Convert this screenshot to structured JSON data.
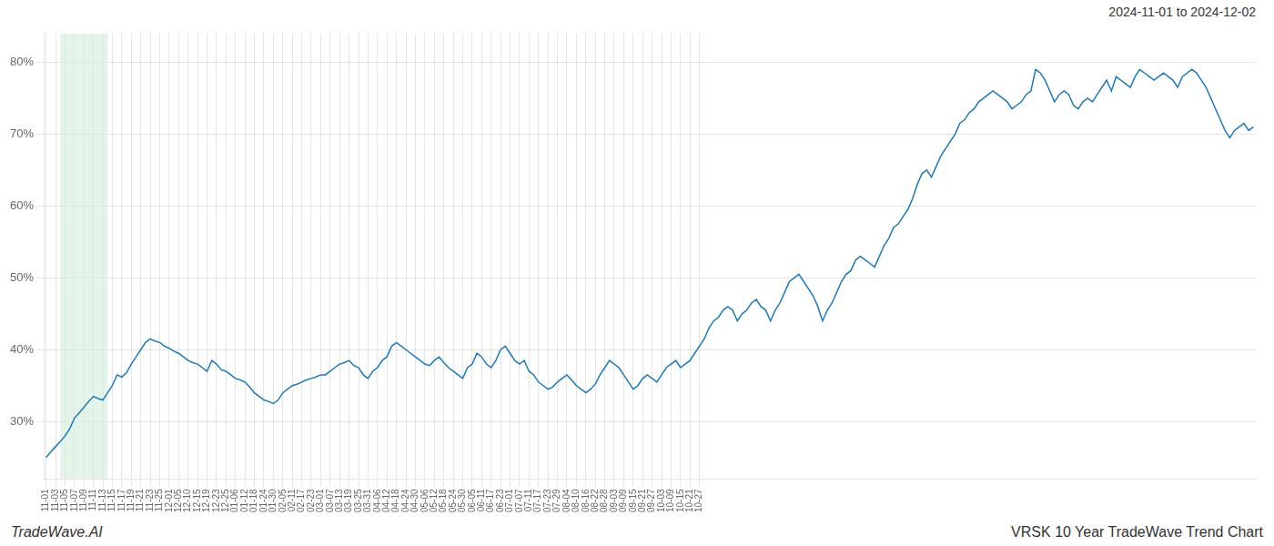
{
  "chart_data": {
    "type": "line",
    "title": "VRSK 10 Year TradeWave Trend Chart",
    "subtitle": "2024-11-01 to 2024-12-02",
    "annotations": [
      "TradeWave.AI"
    ],
    "color": "#1a7abf",
    "grid": true,
    "shaded_region": {
      "start": 3,
      "end": 13,
      "color": "#d4edda"
    },
    "ylim": [
      22,
      84
    ],
    "yticks": [
      {
        "value": 30,
        "label": "30%"
      },
      {
        "value": 40,
        "label": "40%"
      },
      {
        "value": 50,
        "label": "50%"
      },
      {
        "value": 60,
        "label": "60%"
      },
      {
        "value": 70,
        "label": "70%"
      },
      {
        "value": 80,
        "label": "80%"
      }
    ],
    "categories": [
      "11-01",
      null,
      "11-03",
      null,
      "11-05",
      null,
      "11-07",
      null,
      "11-09",
      null,
      "11-11",
      null,
      "11-13",
      null,
      "11-15",
      null,
      "11-17",
      null,
      "11-19",
      null,
      "11-21",
      null,
      "11-23",
      null,
      "11-25",
      null,
      "12-01",
      null,
      "12-05",
      null,
      "12-10",
      null,
      "12-15",
      null,
      "12-19",
      null,
      "12-23",
      null,
      "12-25",
      null,
      "01-06",
      null,
      "01-12",
      null,
      "01-18",
      null,
      "01-24",
      null,
      "01-30",
      null,
      "02-05",
      null,
      "02-11",
      null,
      "02-17",
      null,
      "02-23",
      null,
      "03-01",
      null,
      "03-07",
      null,
      "03-13",
      null,
      "03-19",
      null,
      "03-25",
      null,
      "03-31",
      null,
      "04-06",
      null,
      "04-12",
      null,
      "04-18",
      null,
      "04-24",
      null,
      "04-30",
      null,
      "05-06",
      null,
      "05-12",
      null,
      "05-18",
      null,
      "05-24",
      null,
      "05-30",
      null,
      "06-05",
      null,
      "06-11",
      null,
      "06-17",
      null,
      "06-23",
      null,
      "07-01",
      null,
      "07-07",
      null,
      "07-11",
      null,
      "07-17",
      null,
      "07-23",
      null,
      "07-29",
      null,
      "08-04",
      null,
      "08-10",
      null,
      "08-16",
      null,
      "08-22",
      null,
      "08-28",
      null,
      "09-03",
      null,
      "09-09",
      null,
      "09-15",
      null,
      "09-21",
      null,
      "09-27",
      null,
      "10-03",
      null,
      "10-09",
      null,
      "10-15",
      null,
      "10-21",
      null,
      "10-27",
      null,
      null,
      null,
      null,
      null,
      null,
      null,
      null,
      null,
      null,
      null,
      null,
      null,
      null,
      null,
      null,
      null,
      null,
      null,
      null,
      null,
      null,
      null,
      null,
      null,
      null,
      null,
      null,
      null,
      null,
      null,
      null,
      null,
      null,
      null,
      null,
      null,
      null,
      null,
      null,
      null,
      null,
      null,
      null,
      null,
      null,
      null,
      null,
      null,
      null,
      null,
      null,
      null,
      null,
      null,
      null,
      null,
      null,
      null,
      null,
      null,
      null,
      null,
      null,
      null,
      null,
      null,
      null,
      null,
      null,
      null,
      null,
      null,
      null,
      null,
      null,
      null,
      null,
      null,
      null,
      null,
      null,
      null,
      null,
      null,
      null,
      null,
      null,
      null,
      null,
      null,
      null,
      null,
      null,
      null,
      null,
      null,
      null,
      null,
      null,
      null,
      null,
      null,
      null,
      null,
      null,
      null,
      null,
      null,
      null,
      null,
      null,
      null,
      null,
      null,
      null,
      null
    ],
    "values": [
      25.0,
      25.8,
      26.5,
      27.2,
      28.0,
      29.0,
      30.5,
      31.2,
      32.0,
      32.8,
      33.5,
      33.2,
      33.0,
      34.0,
      35.0,
      36.5,
      36.2,
      36.8,
      38.0,
      39.0,
      40.0,
      41.0,
      41.5,
      41.2,
      41.0,
      40.5,
      40.2,
      39.8,
      39.5,
      39.0,
      38.5,
      38.2,
      38.0,
      37.5,
      37.0,
      38.5,
      38.0,
      37.2,
      37.0,
      36.5,
      36.0,
      35.8,
      35.5,
      34.8,
      34.0,
      33.5,
      33.0,
      32.8,
      32.5,
      33.0,
      34.0,
      34.5,
      35.0,
      35.2,
      35.5,
      35.8,
      36.0,
      36.2,
      36.5,
      36.5,
      37.0,
      37.5,
      38.0,
      38.2,
      38.5,
      37.8,
      37.5,
      36.5,
      36.0,
      37.0,
      37.5,
      38.5,
      39.0,
      40.5,
      41.0,
      40.5,
      40.0,
      39.5,
      39.0,
      38.5,
      38.0,
      37.8,
      38.5,
      39.0,
      38.2,
      37.5,
      37.0,
      36.5,
      36.0,
      37.5,
      38.0,
      39.5,
      39.0,
      38.0,
      37.5,
      38.5,
      40.0,
      40.5,
      39.5,
      38.5,
      38.0,
      38.5,
      37.0,
      36.5,
      35.5,
      35.0,
      34.5,
      34.8,
      35.5,
      36.0,
      36.5,
      35.8,
      35.0,
      34.5,
      34.0,
      34.5,
      35.2,
      36.5,
      37.5,
      38.5,
      38.0,
      37.5,
      36.5,
      35.5,
      34.5,
      35.0,
      36.0,
      36.5,
      36.0,
      35.5,
      36.5,
      37.5,
      38.0,
      38.5,
      37.5,
      38.0,
      38.5,
      39.5,
      40.5,
      41.5,
      43.0,
      44.0,
      44.5,
      45.5,
      46.0,
      45.5,
      44.0,
      45.0,
      45.5,
      46.5,
      47.0,
      46.0,
      45.5,
      44.0,
      45.5,
      46.5,
      48.0,
      49.5,
      50.0,
      50.5,
      49.5,
      48.5,
      47.5,
      46.0,
      44.0,
      45.5,
      46.5,
      48.0,
      49.5,
      50.5,
      51.0,
      52.5,
      53.0,
      52.5,
      52.0,
      51.5,
      53.0,
      54.5,
      55.5,
      57.0,
      57.5,
      58.5,
      59.5,
      61.0,
      63.0,
      64.5,
      65.0,
      64.0,
      65.5,
      67.0,
      68.0,
      69.0,
      70.0,
      71.5,
      72.0,
      73.0,
      73.5,
      74.5,
      75.0,
      75.5,
      76.0,
      75.5,
      75.0,
      74.5,
      73.5,
      74.0,
      74.5,
      75.5,
      76.0,
      79.0,
      78.5,
      77.5,
      76.0,
      74.5,
      75.5,
      76.0,
      75.5,
      74.0,
      73.5,
      74.5,
      75.0,
      74.5,
      75.5,
      76.5,
      77.5,
      76.0,
      78.0,
      77.5,
      77.0,
      76.5,
      78.0,
      79.0,
      78.5,
      78.0,
      77.5,
      78.0,
      78.5,
      78.0,
      77.5,
      76.5,
      78.0,
      78.5,
      79.0,
      78.5,
      77.5,
      76.5,
      75.0,
      73.5,
      72.0,
      70.5,
      69.5,
      70.5,
      71.0,
      71.5,
      70.5,
      71.0
    ]
  }
}
